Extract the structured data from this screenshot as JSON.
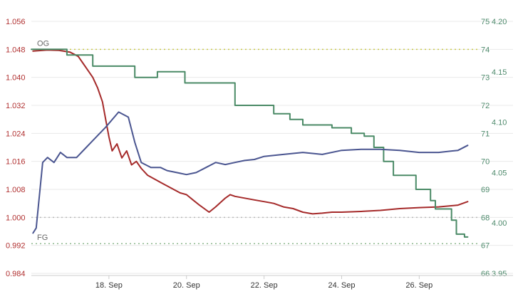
{
  "chart_data": {
    "type": "line",
    "title": "",
    "xlabel": "",
    "x_ticks": [
      "18. Sep",
      "20. Sep",
      "22. Sep",
      "24. Sep",
      "26. Sep"
    ],
    "x_range": [
      "2023-09-16T00:00",
      "2023-09-27T12:00"
    ],
    "grid": true,
    "legend": "none",
    "y_axes": {
      "gravity": {
        "ticks": [
          "1.056",
          "1.048",
          "1.040",
          "1.032",
          "1.024",
          "1.016",
          "1.008",
          "1.000",
          "0.992",
          "0.984"
        ],
        "range": [
          0.984,
          1.056
        ],
        "color": "#b03030"
      },
      "temperature": {
        "ticks": [
          "75",
          "74",
          "73",
          "72",
          "71",
          "70",
          "69",
          "68",
          "67",
          "66"
        ],
        "range": [
          66,
          75
        ],
        "color": "#4e8a6c"
      },
      "battery": {
        "ticks": [
          "4.20",
          "4.15",
          "4.10",
          "4.05",
          "4.00",
          "3.95"
        ],
        "range": [
          3.95,
          4.2
        ],
        "color": "#4e8a6c"
      }
    },
    "reference_lines": [
      {
        "label": "OG",
        "axis": "gravity",
        "value": 1.048,
        "color": "#c9c94a"
      },
      {
        "label": "",
        "axis": "gravity",
        "value": 1.0,
        "color": "#bbbbbb"
      },
      {
        "label": "FG",
        "axis": "gravity",
        "value": 0.9925,
        "color": "#8fb88f"
      }
    ],
    "series": [
      {
        "axis": "gravity",
        "color": "#a52a2a",
        "x": [
          "2023-09-16T01:00",
          "2023-09-16T10:00",
          "2023-09-16T17:00",
          "2023-09-17T00:00",
          "2023-09-17T05:00",
          "2023-09-17T08:00",
          "2023-09-17T11:00",
          "2023-09-17T14:00",
          "2023-09-17T17:00",
          "2023-09-17T20:00",
          "2023-09-17T22:00",
          "2023-09-18T00:00",
          "2023-09-18T02:00",
          "2023-09-18T05:00",
          "2023-09-18T08:00",
          "2023-09-18T11:00",
          "2023-09-18T14:00",
          "2023-09-18T17:00",
          "2023-09-18T20:00",
          "2023-09-19T00:00",
          "2023-09-19T04:00",
          "2023-09-19T08:00",
          "2023-09-19T12:00",
          "2023-09-19T16:00",
          "2023-09-19T20:00",
          "2023-09-20T00:00",
          "2023-09-20T04:00",
          "2023-09-20T08:00",
          "2023-09-20T14:00",
          "2023-09-20T18:00",
          "2023-09-21T00:00",
          "2023-09-21T03:00",
          "2023-09-21T06:00",
          "2023-09-21T12:00",
          "2023-09-21T18:00",
          "2023-09-22T00:00",
          "2023-09-22T06:00",
          "2023-09-22T12:00",
          "2023-09-22T18:00",
          "2023-09-23T00:00",
          "2023-09-23T06:00",
          "2023-09-23T12:00",
          "2023-09-23T18:00",
          "2023-09-24T00:00",
          "2023-09-24T12:00",
          "2023-09-25T00:00",
          "2023-09-25T12:00",
          "2023-09-26T00:00",
          "2023-09-26T12:00",
          "2023-09-27T00:00",
          "2023-09-27T06:00"
        ],
        "y": [
          1.0475,
          1.0478,
          1.0477,
          1.0472,
          1.046,
          1.044,
          1.042,
          1.04,
          1.037,
          1.033,
          1.028,
          1.023,
          1.019,
          1.021,
          1.017,
          1.019,
          1.015,
          1.016,
          1.014,
          1.012,
          1.011,
          1.01,
          1.009,
          1.008,
          1.007,
          1.0065,
          1.005,
          1.0035,
          1.0015,
          1.003,
          1.0055,
          1.0065,
          1.006,
          1.0055,
          1.005,
          1.0045,
          1.004,
          1.003,
          1.0025,
          1.0015,
          1.001,
          1.0012,
          1.0015,
          1.0015,
          1.0017,
          1.002,
          1.0025,
          1.0028,
          1.003,
          1.0035,
          1.0045
        ]
      },
      {
        "axis": "temperature",
        "color": "#4a8a66",
        "x": [
          "2023-09-16T00:00",
          "2023-09-16T21:00",
          "2023-09-16T22:00",
          "2023-09-17T12:00",
          "2023-09-17T14:00",
          "2023-09-18T00:00",
          "2023-09-18T16:00",
          "2023-09-18T21:00",
          "2023-09-19T06:00",
          "2023-09-19T07:00",
          "2023-09-19T23:00",
          "2023-09-20T00:00",
          "2023-09-20T16:00",
          "2023-09-21T04:00",
          "2023-09-21T06:00",
          "2023-09-21T20:00",
          "2023-09-22T06:00",
          "2023-09-22T16:00",
          "2023-09-23T00:00",
          "2023-09-23T12:00",
          "2023-09-23T18:00",
          "2023-09-24T06:00",
          "2023-09-24T14:00",
          "2023-09-24T20:00",
          "2023-09-25T02:00",
          "2023-09-25T08:00",
          "2023-09-25T22:00",
          "2023-09-26T07:00",
          "2023-09-26T10:00",
          "2023-09-26T14:00",
          "2023-09-26T20:00",
          "2023-09-26T23:00",
          "2023-09-27T04:00",
          "2023-09-27T06:00"
        ],
        "y": [
          74,
          74,
          73.8,
          73.8,
          73.4,
          73.4,
          73.0,
          73.0,
          73.2,
          73.2,
          72.8,
          72.8,
          72.8,
          72.8,
          72.0,
          72.0,
          71.7,
          71.5,
          71.3,
          71.3,
          71.2,
          71.0,
          70.9,
          70.5,
          70.0,
          69.5,
          69.0,
          68.6,
          68.3,
          68.3,
          67.9,
          67.4,
          67.3,
          67.3
        ]
      },
      {
        "axis": "battery",
        "color": "#4a5590",
        "x": [
          "2023-09-16T01:00",
          "2023-09-16T03:00",
          "2023-09-16T07:00",
          "2023-09-16T10:00",
          "2023-09-16T14:00",
          "2023-09-16T18:00",
          "2023-09-16T22:00",
          "2023-09-17T04:00",
          "2023-09-17T10:00",
          "2023-09-17T16:00",
          "2023-09-17T22:00",
          "2023-09-18T06:00",
          "2023-09-18T12:00",
          "2023-09-18T16:00",
          "2023-09-18T20:00",
          "2023-09-19T02:00",
          "2023-09-19T08:00",
          "2023-09-19T12:00",
          "2023-09-19T18:00",
          "2023-09-20T00:00",
          "2023-09-20T06:00",
          "2023-09-20T12:00",
          "2023-09-20T18:00",
          "2023-09-21T00:00",
          "2023-09-21T06:00",
          "2023-09-21T12:00",
          "2023-09-21T18:00",
          "2023-09-22T00:00",
          "2023-09-22T12:00",
          "2023-09-23T00:00",
          "2023-09-23T12:00",
          "2023-09-24T00:00",
          "2023-09-24T12:00",
          "2023-09-25T00:00",
          "2023-09-25T12:00",
          "2023-09-26T00:00",
          "2023-09-26T12:00",
          "2023-09-27T00:00",
          "2023-09-27T06:00"
        ],
        "y": [
          3.99,
          3.995,
          4.06,
          4.065,
          4.06,
          4.07,
          4.065,
          4.065,
          4.075,
          4.085,
          4.095,
          4.11,
          4.105,
          4.08,
          4.06,
          4.055,
          4.055,
          4.052,
          4.05,
          4.048,
          4.05,
          4.055,
          4.06,
          4.058,
          4.06,
          4.062,
          4.063,
          4.066,
          4.068,
          4.07,
          4.068,
          4.072,
          4.073,
          4.073,
          4.072,
          4.07,
          4.07,
          4.072,
          4.077
        ]
      }
    ]
  }
}
